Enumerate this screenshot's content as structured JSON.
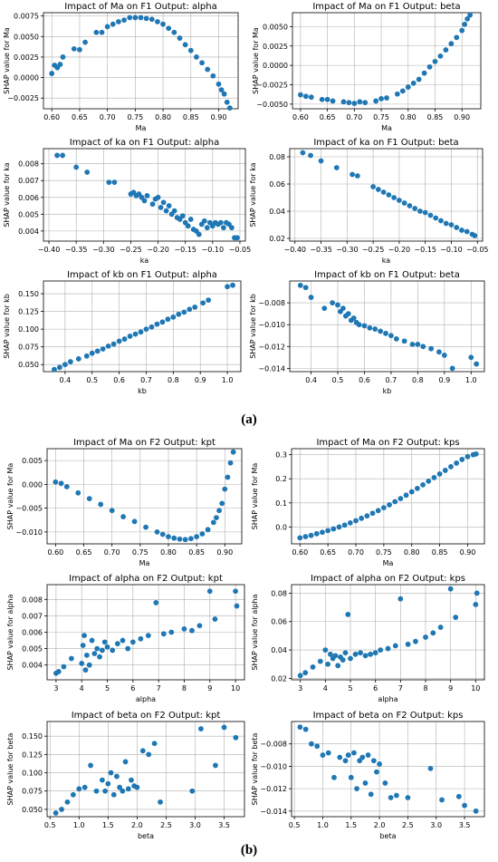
{
  "captions": {
    "a": "(a)",
    "b": "(b)"
  },
  "colors": {
    "marker": "#1f77b4",
    "grid": "#b0b0b0",
    "axis": "#000000"
  },
  "chart_data": [
    {
      "type": "scatter",
      "title": "Impact of Ma on F1 Output: alpha",
      "xlabel": "Ma",
      "ylabel": "SHAP value for Ma",
      "xlim": [
        0.585,
        0.935
      ],
      "ylim": [
        -0.0038,
        0.0079
      ],
      "xticks": [
        0.6,
        0.65,
        0.7,
        0.75,
        0.8,
        0.85,
        0.9
      ],
      "yticks": [
        -0.0025,
        0.0,
        0.0025,
        0.005,
        0.0075
      ],
      "x": [
        0.6,
        0.605,
        0.61,
        0.615,
        0.62,
        0.64,
        0.65,
        0.66,
        0.68,
        0.69,
        0.7,
        0.71,
        0.72,
        0.73,
        0.74,
        0.75,
        0.76,
        0.77,
        0.78,
        0.79,
        0.8,
        0.81,
        0.82,
        0.83,
        0.84,
        0.85,
        0.86,
        0.87,
        0.88,
        0.89,
        0.9,
        0.905,
        0.91,
        0.915,
        0.92
      ],
      "y": [
        0.0005,
        0.0015,
        0.0012,
        0.0016,
        0.0025,
        0.0035,
        0.0034,
        0.0043,
        0.0055,
        0.0055,
        0.0062,
        0.0065,
        0.0068,
        0.007,
        0.0073,
        0.0073,
        0.0073,
        0.0072,
        0.0071,
        0.0068,
        0.0065,
        0.006,
        0.0055,
        0.0048,
        0.004,
        0.0033,
        0.0025,
        0.0018,
        0.001,
        0.0002,
        -0.0008,
        -0.0015,
        -0.002,
        -0.003,
        -0.0037
      ]
    },
    {
      "type": "scatter",
      "title": "Impact of Ma on F1 Output: beta",
      "xlabel": "Ma",
      "ylabel": "SHAP value for Ma",
      "xlim": [
        0.585,
        0.935
      ],
      "ylim": [
        -0.0056,
        0.0068
      ],
      "xticks": [
        0.6,
        0.65,
        0.7,
        0.75,
        0.8,
        0.85,
        0.9
      ],
      "yticks": [
        -0.005,
        -0.0025,
        0.0,
        0.0025,
        0.005
      ],
      "x": [
        0.6,
        0.61,
        0.62,
        0.64,
        0.65,
        0.66,
        0.68,
        0.69,
        0.7,
        0.71,
        0.72,
        0.74,
        0.75,
        0.76,
        0.78,
        0.79,
        0.8,
        0.81,
        0.82,
        0.83,
        0.84,
        0.85,
        0.86,
        0.87,
        0.88,
        0.89,
        0.9,
        0.905,
        0.91,
        0.915
      ],
      "y": [
        -0.0038,
        -0.004,
        -0.0041,
        -0.0044,
        -0.0044,
        -0.0046,
        -0.0047,
        -0.0048,
        -0.0049,
        -0.0047,
        -0.0048,
        -0.0046,
        -0.0043,
        -0.0042,
        -0.0037,
        -0.0033,
        -0.0028,
        -0.0023,
        -0.0018,
        -0.001,
        -0.0002,
        0.0005,
        0.0012,
        0.002,
        0.0028,
        0.0036,
        0.0045,
        0.0053,
        0.006,
        0.0065
      ]
    },
    {
      "type": "scatter",
      "title": "Impact of ka on F1 Output: alpha",
      "xlabel": "ka",
      "ylabel": "SHAP value for ka",
      "xlim": [
        -0.41,
        -0.04
      ],
      "ylim": [
        0.0034,
        0.0089
      ],
      "xticks": [
        -0.4,
        -0.35,
        -0.3,
        -0.25,
        -0.2,
        -0.15,
        -0.1,
        -0.05
      ],
      "yticks": [
        0.004,
        0.005,
        0.006,
        0.007,
        0.008
      ],
      "x": [
        -0.385,
        -0.375,
        -0.35,
        -0.33,
        -0.29,
        -0.28,
        -0.25,
        -0.245,
        -0.24,
        -0.235,
        -0.23,
        -0.225,
        -0.22,
        -0.21,
        -0.205,
        -0.2,
        -0.195,
        -0.19,
        -0.185,
        -0.18,
        -0.175,
        -0.17,
        -0.165,
        -0.16,
        -0.155,
        -0.15,
        -0.145,
        -0.14,
        -0.135,
        -0.13,
        -0.125,
        -0.12,
        -0.115,
        -0.11,
        -0.105,
        -0.1,
        -0.095,
        -0.09,
        -0.085,
        -0.08,
        -0.075,
        -0.07,
        -0.065,
        -0.06,
        -0.055
      ],
      "y": [
        0.0085,
        0.0085,
        0.0078,
        0.0075,
        0.0069,
        0.0069,
        0.0062,
        0.0063,
        0.0061,
        0.0062,
        0.006,
        0.0058,
        0.0061,
        0.0056,
        0.0059,
        0.006,
        0.0054,
        0.0057,
        0.0052,
        0.0055,
        0.005,
        0.0052,
        0.0048,
        0.0047,
        0.0049,
        0.0045,
        0.0043,
        0.0047,
        0.0041,
        0.004,
        0.0038,
        0.0044,
        0.0046,
        0.0042,
        0.0045,
        0.0043,
        0.0045,
        0.0044,
        0.0045,
        0.0042,
        0.0045,
        0.0044,
        0.0042,
        0.0036,
        0.0036
      ]
    },
    {
      "type": "scatter",
      "title": "Impact of ka on F1 Output: beta",
      "xlabel": "ka",
      "ylabel": "SHAP value for ka",
      "xlim": [
        -0.41,
        -0.04
      ],
      "ylim": [
        0.018,
        0.086
      ],
      "xticks": [
        -0.4,
        -0.35,
        -0.3,
        -0.25,
        -0.2,
        -0.15,
        -0.1,
        -0.05
      ],
      "yticks": [
        0.02,
        0.04,
        0.06,
        0.08
      ],
      "x": [
        -0.385,
        -0.37,
        -0.35,
        -0.32,
        -0.29,
        -0.28,
        -0.25,
        -0.24,
        -0.23,
        -0.22,
        -0.21,
        -0.2,
        -0.19,
        -0.18,
        -0.17,
        -0.16,
        -0.15,
        -0.14,
        -0.13,
        -0.12,
        -0.11,
        -0.1,
        -0.09,
        -0.08,
        -0.07,
        -0.06,
        -0.055
      ],
      "y": [
        0.083,
        0.081,
        0.077,
        0.072,
        0.067,
        0.066,
        0.058,
        0.056,
        0.054,
        0.052,
        0.05,
        0.048,
        0.046,
        0.044,
        0.042,
        0.04,
        0.039,
        0.037,
        0.035,
        0.033,
        0.031,
        0.03,
        0.028,
        0.026,
        0.025,
        0.023,
        0.022
      ]
    },
    {
      "type": "scatter",
      "title": "Impact of kb on F1 Output: alpha",
      "xlabel": "kb",
      "ylabel": "SHAP value for kb",
      "xlim": [
        0.32,
        1.05
      ],
      "ylim": [
        0.04,
        0.168
      ],
      "xticks": [
        0.4,
        0.5,
        0.6,
        0.7,
        0.8,
        0.9,
        1.0
      ],
      "yticks": [
        0.05,
        0.075,
        0.1,
        0.125,
        0.15
      ],
      "x": [
        0.36,
        0.38,
        0.4,
        0.42,
        0.45,
        0.48,
        0.5,
        0.52,
        0.54,
        0.56,
        0.58,
        0.6,
        0.62,
        0.64,
        0.66,
        0.68,
        0.7,
        0.72,
        0.74,
        0.76,
        0.78,
        0.8,
        0.82,
        0.84,
        0.86,
        0.88,
        0.91,
        0.93,
        1.0,
        1.02
      ],
      "y": [
        0.043,
        0.046,
        0.05,
        0.054,
        0.058,
        0.062,
        0.066,
        0.069,
        0.072,
        0.076,
        0.079,
        0.083,
        0.086,
        0.09,
        0.093,
        0.096,
        0.1,
        0.103,
        0.107,
        0.11,
        0.114,
        0.117,
        0.121,
        0.124,
        0.128,
        0.131,
        0.137,
        0.141,
        0.16,
        0.162
      ]
    },
    {
      "type": "scatter",
      "title": "Impact of kb on F1 Output: beta",
      "xlabel": "kb",
      "ylabel": "SHAP value for kb",
      "xlim": [
        0.32,
        1.05
      ],
      "ylim": [
        -0.0143,
        -0.006
      ],
      "xticks": [
        0.4,
        0.5,
        0.6,
        0.7,
        0.8,
        0.9,
        1.0
      ],
      "yticks": [
        -0.008,
        -0.01,
        -0.012,
        -0.014
      ],
      "x": [
        0.36,
        0.38,
        0.4,
        0.45,
        0.48,
        0.5,
        0.51,
        0.52,
        0.53,
        0.54,
        0.55,
        0.56,
        0.57,
        0.58,
        0.6,
        0.62,
        0.64,
        0.66,
        0.68,
        0.7,
        0.72,
        0.75,
        0.78,
        0.8,
        0.82,
        0.85,
        0.88,
        0.9,
        0.93,
        1.0,
        1.02
      ],
      "y": [
        -0.0064,
        -0.0066,
        -0.0075,
        -0.0085,
        -0.008,
        -0.0082,
        -0.0088,
        -0.0085,
        -0.0092,
        -0.009,
        -0.0096,
        -0.0094,
        -0.0098,
        -0.01,
        -0.0101,
        -0.0103,
        -0.0104,
        -0.0106,
        -0.0108,
        -0.011,
        -0.0113,
        -0.0115,
        -0.0118,
        -0.0118,
        -0.012,
        -0.0122,
        -0.0125,
        -0.0128,
        -0.014,
        -0.013,
        -0.0136
      ]
    },
    {
      "type": "scatter",
      "title": "Impact of Ma on F2 Output: kpt",
      "xlabel": "Ma",
      "ylabel": "SHAP value for Ma",
      "xlim": [
        0.585,
        0.93
      ],
      "ylim": [
        -0.0125,
        0.0075
      ],
      "xticks": [
        0.6,
        0.65,
        0.7,
        0.75,
        0.8,
        0.85,
        0.9
      ],
      "yticks": [
        -0.01,
        -0.005,
        0.0,
        0.005
      ],
      "x": [
        0.6,
        0.61,
        0.62,
        0.64,
        0.66,
        0.68,
        0.7,
        0.72,
        0.74,
        0.76,
        0.78,
        0.79,
        0.8,
        0.81,
        0.82,
        0.83,
        0.84,
        0.85,
        0.86,
        0.87,
        0.88,
        0.885,
        0.89,
        0.895,
        0.9,
        0.905,
        0.91,
        0.915
      ],
      "y": [
        0.0005,
        0.0002,
        -0.0005,
        -0.0018,
        -0.003,
        -0.0042,
        -0.0055,
        -0.0068,
        -0.0078,
        -0.009,
        -0.01,
        -0.0105,
        -0.011,
        -0.0113,
        -0.0115,
        -0.0116,
        -0.0114,
        -0.011,
        -0.0104,
        -0.0095,
        -0.008,
        -0.007,
        -0.0055,
        -0.004,
        -0.001,
        0.0015,
        0.0045,
        0.0068
      ]
    },
    {
      "type": "scatter",
      "title": "Impact of Ma on F2 Output: kps",
      "xlabel": "Ma",
      "ylabel": "SHAP value for Ma",
      "xlim": [
        0.585,
        0.93
      ],
      "ylim": [
        -0.07,
        0.325
      ],
      "xticks": [
        0.6,
        0.65,
        0.7,
        0.75,
        0.8,
        0.85,
        0.9
      ],
      "yticks": [
        0.0,
        0.1,
        0.2,
        0.3
      ],
      "x": [
        0.6,
        0.61,
        0.62,
        0.63,
        0.64,
        0.65,
        0.66,
        0.67,
        0.68,
        0.69,
        0.7,
        0.71,
        0.72,
        0.73,
        0.74,
        0.75,
        0.76,
        0.77,
        0.78,
        0.79,
        0.8,
        0.81,
        0.82,
        0.83,
        0.84,
        0.85,
        0.86,
        0.87,
        0.88,
        0.89,
        0.9,
        0.91,
        0.915
      ],
      "y": [
        -0.045,
        -0.04,
        -0.035,
        -0.028,
        -0.022,
        -0.015,
        -0.008,
        0.0,
        0.008,
        0.017,
        0.026,
        0.036,
        0.046,
        0.057,
        0.068,
        0.08,
        0.092,
        0.105,
        0.118,
        0.132,
        0.146,
        0.16,
        0.175,
        0.19,
        0.205,
        0.22,
        0.235,
        0.25,
        0.265,
        0.28,
        0.292,
        0.3,
        0.303
      ]
    },
    {
      "type": "scatter",
      "title": "Impact of alpha on F2 Output: kpt",
      "xlabel": "alpha",
      "ylabel": "SHAP value for alpha",
      "xlim": [
        2.65,
        10.35
      ],
      "ylim": [
        0.0031,
        0.0089
      ],
      "xticks": [
        3,
        4,
        5,
        6,
        7,
        8,
        9,
        10
      ],
      "yticks": [
        0.004,
        0.005,
        0.006,
        0.007,
        0.008
      ],
      "x": [
        3.0,
        3.1,
        3.3,
        3.6,
        4.0,
        4.05,
        4.1,
        4.15,
        4.2,
        4.3,
        4.4,
        4.5,
        4.6,
        4.7,
        4.8,
        4.9,
        5.0,
        5.2,
        5.4,
        5.6,
        5.8,
        6.0,
        6.3,
        6.6,
        6.9,
        7.2,
        7.5,
        8.0,
        8.3,
        8.6,
        9.0,
        9.2,
        10.0,
        10.05
      ],
      "y": [
        0.0035,
        0.0036,
        0.0039,
        0.0044,
        0.0041,
        0.0052,
        0.0058,
        0.0037,
        0.0046,
        0.004,
        0.0055,
        0.0047,
        0.005,
        0.0045,
        0.0049,
        0.0054,
        0.0051,
        0.0049,
        0.0053,
        0.0055,
        0.005,
        0.0054,
        0.0056,
        0.0058,
        0.0078,
        0.0059,
        0.006,
        0.0062,
        0.0061,
        0.0064,
        0.0085,
        0.0068,
        0.0085,
        0.0076
      ]
    },
    {
      "type": "scatter",
      "title": "Impact of alpha on F2 Output: kps",
      "xlabel": "alpha",
      "ylabel": "SHAP value for alpha",
      "xlim": [
        2.65,
        10.35
      ],
      "ylim": [
        0.019,
        0.086
      ],
      "xticks": [
        3,
        4,
        5,
        6,
        7,
        8,
        9,
        10
      ],
      "yticks": [
        0.02,
        0.04,
        0.06,
        0.08
      ],
      "x": [
        3.0,
        3.2,
        3.5,
        3.8,
        4.0,
        4.1,
        4.2,
        4.3,
        4.4,
        4.5,
        4.6,
        4.7,
        4.8,
        4.9,
        5.0,
        5.2,
        5.4,
        5.6,
        5.8,
        6.0,
        6.2,
        6.5,
        6.8,
        7.0,
        7.3,
        7.6,
        8.0,
        8.3,
        8.6,
        9.0,
        9.2,
        10.0,
        10.05
      ],
      "y": [
        0.022,
        0.024,
        0.028,
        0.032,
        0.04,
        0.03,
        0.037,
        0.034,
        0.036,
        0.029,
        0.035,
        0.033,
        0.038,
        0.065,
        0.034,
        0.037,
        0.038,
        0.036,
        0.037,
        0.038,
        0.04,
        0.041,
        0.043,
        0.076,
        0.044,
        0.046,
        0.049,
        0.052,
        0.056,
        0.083,
        0.063,
        0.072,
        0.08
      ]
    },
    {
      "type": "scatter",
      "title": "Impact of beta on F2 Output: kpt",
      "xlabel": "beta",
      "ylabel": "SHAP value for beta",
      "xlim": [
        0.45,
        3.85
      ],
      "ylim": [
        0.04,
        0.17
      ],
      "xticks": [
        0.5,
        1.0,
        1.5,
        2.0,
        2.5,
        3.0,
        3.5
      ],
      "yticks": [
        0.05,
        0.075,
        0.1,
        0.125,
        0.15
      ],
      "x": [
        0.6,
        0.7,
        0.8,
        0.9,
        1.0,
        1.1,
        1.2,
        1.3,
        1.4,
        1.45,
        1.5,
        1.55,
        1.6,
        1.65,
        1.7,
        1.75,
        1.8,
        1.85,
        1.9,
        1.95,
        2.0,
        2.1,
        2.2,
        2.3,
        2.4,
        2.95,
        3.1,
        3.35,
        3.5,
        3.7
      ],
      "y": [
        0.045,
        0.05,
        0.06,
        0.07,
        0.078,
        0.08,
        0.11,
        0.075,
        0.09,
        0.075,
        0.085,
        0.1,
        0.07,
        0.095,
        0.08,
        0.075,
        0.115,
        0.078,
        0.09,
        0.082,
        0.08,
        0.13,
        0.125,
        0.14,
        0.06,
        0.075,
        0.16,
        0.11,
        0.162,
        0.148
      ]
    },
    {
      "type": "scatter",
      "title": "Impact of beta on F2 Output: kps",
      "xlabel": "beta",
      "ylabel": "SHAP value for beta",
      "xlim": [
        0.45,
        3.85
      ],
      "ylim": [
        -0.0145,
        -0.006
      ],
      "xticks": [
        0.5,
        1.0,
        1.5,
        2.0,
        2.5,
        3.0,
        3.5
      ],
      "yticks": [
        -0.008,
        -0.01,
        -0.012,
        -0.014
      ],
      "x": [
        0.6,
        0.7,
        0.8,
        0.9,
        1.0,
        1.1,
        1.2,
        1.3,
        1.4,
        1.45,
        1.5,
        1.55,
        1.6,
        1.65,
        1.7,
        1.75,
        1.8,
        1.85,
        1.9,
        1.95,
        2.0,
        2.1,
        2.2,
        2.3,
        2.5,
        2.9,
        3.1,
        3.4,
        3.5,
        3.7
      ],
      "y": [
        -0.0065,
        -0.0067,
        -0.008,
        -0.0082,
        -0.009,
        -0.0088,
        -0.011,
        -0.0092,
        -0.0095,
        -0.009,
        -0.011,
        -0.0088,
        -0.012,
        -0.0095,
        -0.0092,
        -0.0115,
        -0.009,
        -0.0125,
        -0.0095,
        -0.0105,
        -0.0098,
        -0.0115,
        -0.0128,
        -0.0126,
        -0.0128,
        -0.0102,
        -0.013,
        -0.0127,
        -0.0135,
        -0.014
      ]
    }
  ]
}
